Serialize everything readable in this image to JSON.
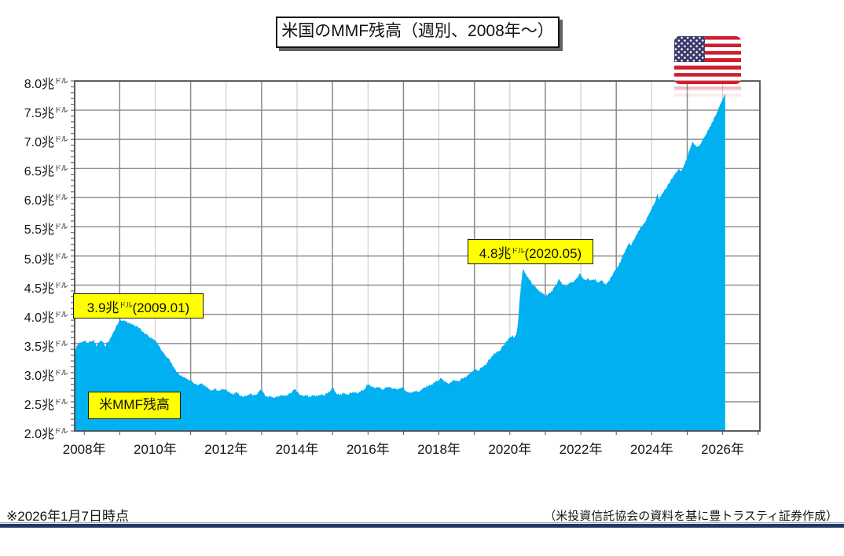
{
  "title": "米国のMMF残高（週別、2008年～）",
  "footer": {
    "left": "※2026年1月7日時点",
    "right": "（米投資信託協会の資料を基に豊トラスティ証券作成）"
  },
  "annotations": {
    "peak2009": {
      "pre": "3.9兆",
      "sup": "ドル",
      "post": "(2009.01)"
    },
    "peak2020": {
      "pre": "4.8兆",
      "sup": "ドル",
      "post": "(2020.05)"
    },
    "series_label": "米MMF残高"
  },
  "colors": {
    "area": "#00B0F0",
    "grid_major": "#8a8a8a",
    "grid_minor": "#cdcdcd",
    "frame": "#4d4d4d",
    "callout_bg": "#FFFF00",
    "rule_navy": "#1F3864",
    "flag_red": "#CE2030",
    "flag_blue": "#3C3B6E"
  },
  "chart_data": {
    "type": "area",
    "title": "米国のMMF残高（週別、2008年～）",
    "series_name": "米MMF残高",
    "unit": "兆ドル",
    "y_unit_big": "兆",
    "y_unit_small": "ドル",
    "ylim": [
      2.0,
      8.0
    ],
    "xlim": [
      2007.73,
      2027.05
    ],
    "grid": "on",
    "y_ticks": [
      {
        "v": 8.0,
        "label": "8.0"
      },
      {
        "v": 7.5,
        "label": "7.5"
      },
      {
        "v": 7.0,
        "label": "7.0"
      },
      {
        "v": 6.5,
        "label": "6.5"
      },
      {
        "v": 6.0,
        "label": "6.0"
      },
      {
        "v": 5.5,
        "label": "5.5"
      },
      {
        "v": 5.0,
        "label": "5.0"
      },
      {
        "v": 4.5,
        "label": "4.5"
      },
      {
        "v": 4.0,
        "label": "4.0"
      },
      {
        "v": 3.5,
        "label": "3.5"
      },
      {
        "v": 3.0,
        "label": "3.0"
      },
      {
        "v": 2.5,
        "label": "2.5"
      },
      {
        "v": 2.0,
        "label": "2.0"
      }
    ],
    "x_ticks": [
      {
        "year": 2008,
        "label": "2008年"
      },
      {
        "year": 2010,
        "label": "2010年"
      },
      {
        "year": 2012,
        "label": "2012年"
      },
      {
        "year": 2014,
        "label": "2014年"
      },
      {
        "year": 2016,
        "label": "2016年"
      },
      {
        "year": 2018,
        "label": "2018年"
      },
      {
        "year": 2020,
        "label": "2020年"
      },
      {
        "year": 2022,
        "label": "2022年"
      },
      {
        "year": 2024,
        "label": "2024年"
      },
      {
        "year": 2026,
        "label": "2026年"
      }
    ],
    "points": [
      [
        2007.73,
        3.35
      ],
      [
        2007.79,
        3.46
      ],
      [
        2007.85,
        3.5
      ],
      [
        2007.95,
        3.53
      ],
      [
        2008.02,
        3.55
      ],
      [
        2008.08,
        3.5
      ],
      [
        2008.14,
        3.54
      ],
      [
        2008.2,
        3.52
      ],
      [
        2008.26,
        3.56
      ],
      [
        2008.31,
        3.49
      ],
      [
        2008.36,
        3.45
      ],
      [
        2008.42,
        3.52
      ],
      [
        2008.48,
        3.56
      ],
      [
        2008.54,
        3.51
      ],
      [
        2008.6,
        3.44
      ],
      [
        2008.64,
        3.53
      ],
      [
        2008.68,
        3.5
      ],
      [
        2008.73,
        3.58
      ],
      [
        2008.78,
        3.65
      ],
      [
        2008.84,
        3.72
      ],
      [
        2008.9,
        3.79
      ],
      [
        2008.96,
        3.86
      ],
      [
        2009.02,
        3.92
      ],
      [
        2009.08,
        3.88
      ],
      [
        2009.14,
        3.9
      ],
      [
        2009.2,
        3.86
      ],
      [
        2009.3,
        3.85
      ],
      [
        2009.4,
        3.82
      ],
      [
        2009.5,
        3.79
      ],
      [
        2009.6,
        3.73
      ],
      [
        2009.7,
        3.67
      ],
      [
        2009.8,
        3.63
      ],
      [
        2009.9,
        3.59
      ],
      [
        2010.0,
        3.55
      ],
      [
        2010.1,
        3.47
      ],
      [
        2010.2,
        3.37
      ],
      [
        2010.3,
        3.28
      ],
      [
        2010.4,
        3.22
      ],
      [
        2010.5,
        3.11
      ],
      [
        2010.6,
        3.02
      ],
      [
        2010.7,
        2.96
      ],
      [
        2010.8,
        2.92
      ],
      [
        2010.9,
        2.9
      ],
      [
        2011.0,
        2.87
      ],
      [
        2011.1,
        2.82
      ],
      [
        2011.2,
        2.78
      ],
      [
        2011.3,
        2.81
      ],
      [
        2011.4,
        2.77
      ],
      [
        2011.5,
        2.73
      ],
      [
        2011.6,
        2.69
      ],
      [
        2011.7,
        2.72
      ],
      [
        2011.8,
        2.69
      ],
      [
        2011.9,
        2.72
      ],
      [
        2012.0,
        2.7
      ],
      [
        2012.1,
        2.66
      ],
      [
        2012.2,
        2.63
      ],
      [
        2012.3,
        2.66
      ],
      [
        2012.4,
        2.61
      ],
      [
        2012.5,
        2.59
      ],
      [
        2012.6,
        2.61
      ],
      [
        2012.7,
        2.64
      ],
      [
        2012.8,
        2.61
      ],
      [
        2012.9,
        2.65
      ],
      [
        2012.97,
        2.72
      ],
      [
        2013.05,
        2.65
      ],
      [
        2013.15,
        2.58
      ],
      [
        2013.25,
        2.6
      ],
      [
        2013.35,
        2.56
      ],
      [
        2013.45,
        2.59
      ],
      [
        2013.55,
        2.61
      ],
      [
        2013.65,
        2.59
      ],
      [
        2013.75,
        2.63
      ],
      [
        2013.85,
        2.66
      ],
      [
        2013.95,
        2.72
      ],
      [
        2014.05,
        2.64
      ],
      [
        2014.15,
        2.6
      ],
      [
        2014.25,
        2.62
      ],
      [
        2014.35,
        2.58
      ],
      [
        2014.45,
        2.61
      ],
      [
        2014.55,
        2.6
      ],
      [
        2014.65,
        2.63
      ],
      [
        2014.75,
        2.61
      ],
      [
        2014.85,
        2.65
      ],
      [
        2014.95,
        2.7
      ],
      [
        2015.02,
        2.73
      ],
      [
        2015.12,
        2.64
      ],
      [
        2015.22,
        2.62
      ],
      [
        2015.32,
        2.65
      ],
      [
        2015.42,
        2.62
      ],
      [
        2015.52,
        2.65
      ],
      [
        2015.62,
        2.67
      ],
      [
        2015.72,
        2.65
      ],
      [
        2015.82,
        2.69
      ],
      [
        2015.92,
        2.73
      ],
      [
        2016.0,
        2.81
      ],
      [
        2016.1,
        2.76
      ],
      [
        2016.2,
        2.73
      ],
      [
        2016.3,
        2.75
      ],
      [
        2016.4,
        2.71
      ],
      [
        2016.5,
        2.74
      ],
      [
        2016.6,
        2.76
      ],
      [
        2016.7,
        2.73
      ],
      [
        2016.8,
        2.71
      ],
      [
        2016.9,
        2.73
      ],
      [
        2016.97,
        2.75
      ],
      [
        2017.05,
        2.69
      ],
      [
        2017.15,
        2.65
      ],
      [
        2017.25,
        2.67
      ],
      [
        2017.35,
        2.69
      ],
      [
        2017.45,
        2.67
      ],
      [
        2017.55,
        2.73
      ],
      [
        2017.65,
        2.76
      ],
      [
        2017.75,
        2.79
      ],
      [
        2017.85,
        2.82
      ],
      [
        2017.95,
        2.86
      ],
      [
        2018.05,
        2.9
      ],
      [
        2018.15,
        2.86
      ],
      [
        2018.25,
        2.81
      ],
      [
        2018.35,
        2.85
      ],
      [
        2018.45,
        2.87
      ],
      [
        2018.55,
        2.86
      ],
      [
        2018.65,
        2.89
      ],
      [
        2018.75,
        2.93
      ],
      [
        2018.85,
        2.97
      ],
      [
        2018.95,
        3.02
      ],
      [
        2019.0,
        3.07
      ],
      [
        2019.08,
        3.03
      ],
      [
        2019.16,
        3.06
      ],
      [
        2019.25,
        3.1
      ],
      [
        2019.33,
        3.15
      ],
      [
        2019.42,
        3.22
      ],
      [
        2019.5,
        3.28
      ],
      [
        2019.58,
        3.33
      ],
      [
        2019.65,
        3.38
      ],
      [
        2019.7,
        3.35
      ],
      [
        2019.78,
        3.44
      ],
      [
        2019.86,
        3.5
      ],
      [
        2019.94,
        3.56
      ],
      [
        2020.02,
        3.61
      ],
      [
        2020.08,
        3.64
      ],
      [
        2020.13,
        3.6
      ],
      [
        2020.18,
        3.66
      ],
      [
        2020.22,
        3.8
      ],
      [
        2020.27,
        4.2
      ],
      [
        2020.32,
        4.55
      ],
      [
        2020.37,
        4.78
      ],
      [
        2020.42,
        4.71
      ],
      [
        2020.48,
        4.66
      ],
      [
        2020.54,
        4.61
      ],
      [
        2020.62,
        4.54
      ],
      [
        2020.7,
        4.48
      ],
      [
        2020.78,
        4.43
      ],
      [
        2020.86,
        4.38
      ],
      [
        2020.95,
        4.34
      ],
      [
        2021.02,
        4.32
      ],
      [
        2021.1,
        4.36
      ],
      [
        2021.2,
        4.41
      ],
      [
        2021.3,
        4.5
      ],
      [
        2021.38,
        4.61
      ],
      [
        2021.44,
        4.55
      ],
      [
        2021.52,
        4.51
      ],
      [
        2021.6,
        4.49
      ],
      [
        2021.7,
        4.53
      ],
      [
        2021.8,
        4.56
      ],
      [
        2021.9,
        4.62
      ],
      [
        2021.97,
        4.71
      ],
      [
        2022.04,
        4.63
      ],
      [
        2022.12,
        4.58
      ],
      [
        2022.2,
        4.62
      ],
      [
        2022.3,
        4.57
      ],
      [
        2022.4,
        4.6
      ],
      [
        2022.5,
        4.55
      ],
      [
        2022.6,
        4.58
      ],
      [
        2022.7,
        4.51
      ],
      [
        2022.8,
        4.58
      ],
      [
        2022.9,
        4.67
      ],
      [
        2022.98,
        4.77
      ],
      [
        2023.06,
        4.83
      ],
      [
        2023.14,
        4.93
      ],
      [
        2023.22,
        5.05
      ],
      [
        2023.3,
        5.15
      ],
      [
        2023.36,
        5.21
      ],
      [
        2023.42,
        5.18
      ],
      [
        2023.48,
        5.27
      ],
      [
        2023.56,
        5.36
      ],
      [
        2023.64,
        5.44
      ],
      [
        2023.72,
        5.51
      ],
      [
        2023.8,
        5.58
      ],
      [
        2023.88,
        5.66
      ],
      [
        2023.96,
        5.76
      ],
      [
        2024.04,
        5.86
      ],
      [
        2024.1,
        5.94
      ],
      [
        2024.15,
        6.07
      ],
      [
        2024.2,
        5.97
      ],
      [
        2024.28,
        6.04
      ],
      [
        2024.36,
        6.12
      ],
      [
        2024.44,
        6.2
      ],
      [
        2024.52,
        6.28
      ],
      [
        2024.6,
        6.36
      ],
      [
        2024.68,
        6.42
      ],
      [
        2024.76,
        6.49
      ],
      [
        2024.82,
        6.45
      ],
      [
        2024.9,
        6.54
      ],
      [
        2024.97,
        6.64
      ],
      [
        2025.04,
        6.76
      ],
      [
        2025.1,
        6.89
      ],
      [
        2025.15,
        6.95
      ],
      [
        2025.22,
        6.9
      ],
      [
        2025.3,
        6.87
      ],
      [
        2025.38,
        6.93
      ],
      [
        2025.46,
        7.02
      ],
      [
        2025.54,
        7.1
      ],
      [
        2025.62,
        7.19
      ],
      [
        2025.7,
        7.28
      ],
      [
        2025.76,
        7.36
      ],
      [
        2025.82,
        7.43
      ],
      [
        2025.88,
        7.52
      ],
      [
        2025.93,
        7.6
      ],
      [
        2025.98,
        7.68
      ],
      [
        2026.03,
        7.74
      ],
      [
        2026.07,
        7.78
      ]
    ]
  }
}
